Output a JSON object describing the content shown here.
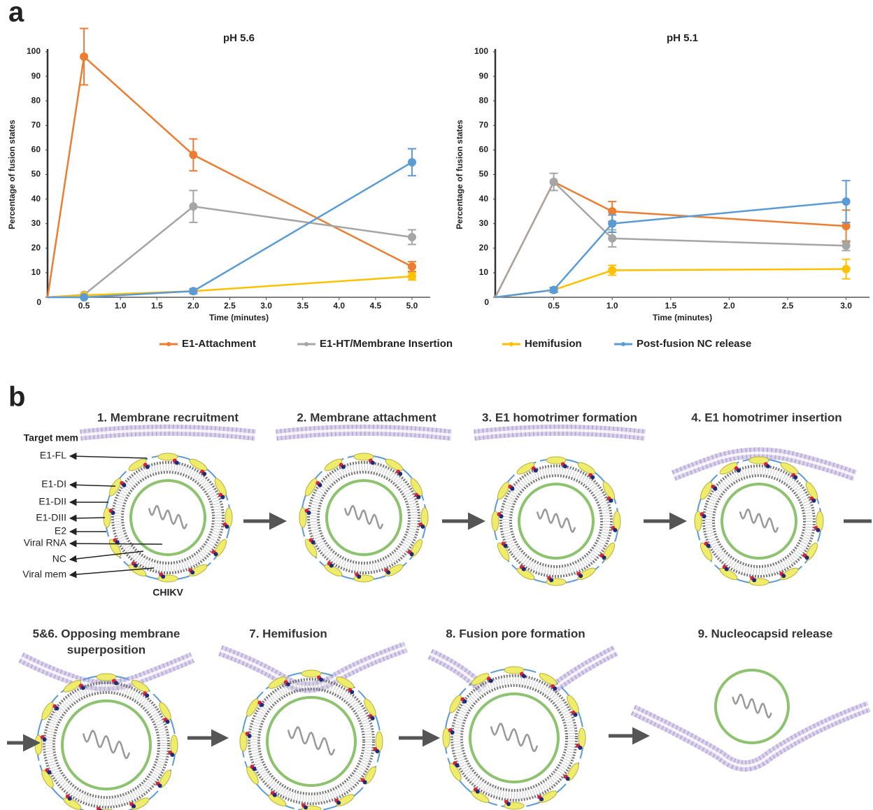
{
  "panel_labels": [
    "a",
    "b"
  ],
  "chart_data": [
    {
      "type": "line",
      "title": "pH 5.6",
      "x_label": "Time (minutes)",
      "y_label": "Percentage of fusion states",
      "x": [
        0,
        0.5,
        2.0,
        5.0
      ],
      "xlim": [
        0,
        5.25
      ],
      "ylim": [
        0,
        100
      ],
      "xticks": [
        0.5,
        {
          "value": 1,
          "label": "1.0"
        },
        1.5,
        {
          "value": 2,
          "label": "2.0"
        },
        2.5,
        {
          "value": 3,
          "label": "3.0"
        },
        3.5,
        {
          "value": 4,
          "label": "4.0"
        },
        4.5,
        {
          "value": 5,
          "label": "5.0"
        }
      ],
      "yticks": [
        0,
        10,
        20,
        30,
        40,
        50,
        60,
        70,
        80,
        90,
        100
      ],
      "series": [
        {
          "name": "E1-Attachment",
          "color": "#ed7d31",
          "values": [
            0,
            98,
            58,
            12.5
          ],
          "errors": [
            null,
            11.5,
            6.5,
            2
          ]
        },
        {
          "name": "E1-HT/Membrane Insertion",
          "color": "#a5a5a5",
          "values": [
            0,
            1,
            37,
            24.5
          ],
          "errors": [
            null,
            null,
            6.5,
            3
          ]
        },
        {
          "name": "Hemifusion",
          "color": "#ffc000",
          "values": [
            0,
            0.8,
            2.5,
            8.5
          ],
          "errors": [
            null,
            null,
            null,
            1.5
          ]
        },
        {
          "name": "Post-fusion NC release",
          "color": "#5b9bd5",
          "values": [
            0,
            0,
            2.5,
            55
          ],
          "errors": [
            null,
            null,
            1,
            5.5
          ]
        }
      ]
    },
    {
      "type": "line",
      "title": "pH 5.1",
      "x_label": "Time (minutes)",
      "y_label": "Percentage of fusion states",
      "x": [
        0,
        0.5,
        1.0,
        3.0
      ],
      "xlim": [
        0,
        3.2
      ],
      "ylim": [
        0,
        100
      ],
      "xticks": [
        0.5,
        {
          "value": 1,
          "label": "1.0"
        },
        1.5,
        {
          "value": 2,
          "label": "2.0"
        },
        2.5,
        {
          "value": 3,
          "label": "3.0"
        }
      ],
      "yticks": [
        0,
        10,
        20,
        30,
        40,
        50,
        60,
        70,
        80,
        90,
        100
      ],
      "series": [
        {
          "color": "#ed7d31",
          "values": [
            0,
            47,
            35,
            29
          ],
          "errors": [
            null,
            null,
            4,
            6.5
          ]
        },
        {
          "color": "#a5a5a5",
          "values": [
            0,
            47,
            24,
            21
          ],
          "errors": [
            null,
            3.5,
            3.5,
            2
          ]
        },
        {
          "color": "#ffc000",
          "values": [
            0,
            3,
            11,
            11.5
          ],
          "errors": [
            null,
            null,
            2,
            4
          ]
        },
        {
          "color": "#5b9bd5",
          "values": [
            0,
            3,
            30,
            39
          ],
          "errors": [
            null,
            1,
            3.5,
            8.5
          ]
        }
      ]
    }
  ],
  "diagram": {
    "steps": [
      [
        "1. Membrane recruitment"
      ],
      [
        "2. Membrane attachment"
      ],
      [
        "3. E1 homotrimer formation"
      ],
      [
        "4. E1 homotrimer insertion"
      ],
      [
        "5&6. Opposing membrane",
        "superposition"
      ],
      [
        "7. Hemifusion"
      ],
      [
        "8. Fusion pore formation"
      ],
      [
        "9. Nucleocapsid release"
      ]
    ],
    "labels": [
      "Target mem",
      "E1-FL",
      "E1-DI",
      "E1-DII",
      "E1-DIII",
      "E2",
      "Viral RNA",
      "NC",
      "Viral mem"
    ],
    "virus": "CHIKV"
  }
}
